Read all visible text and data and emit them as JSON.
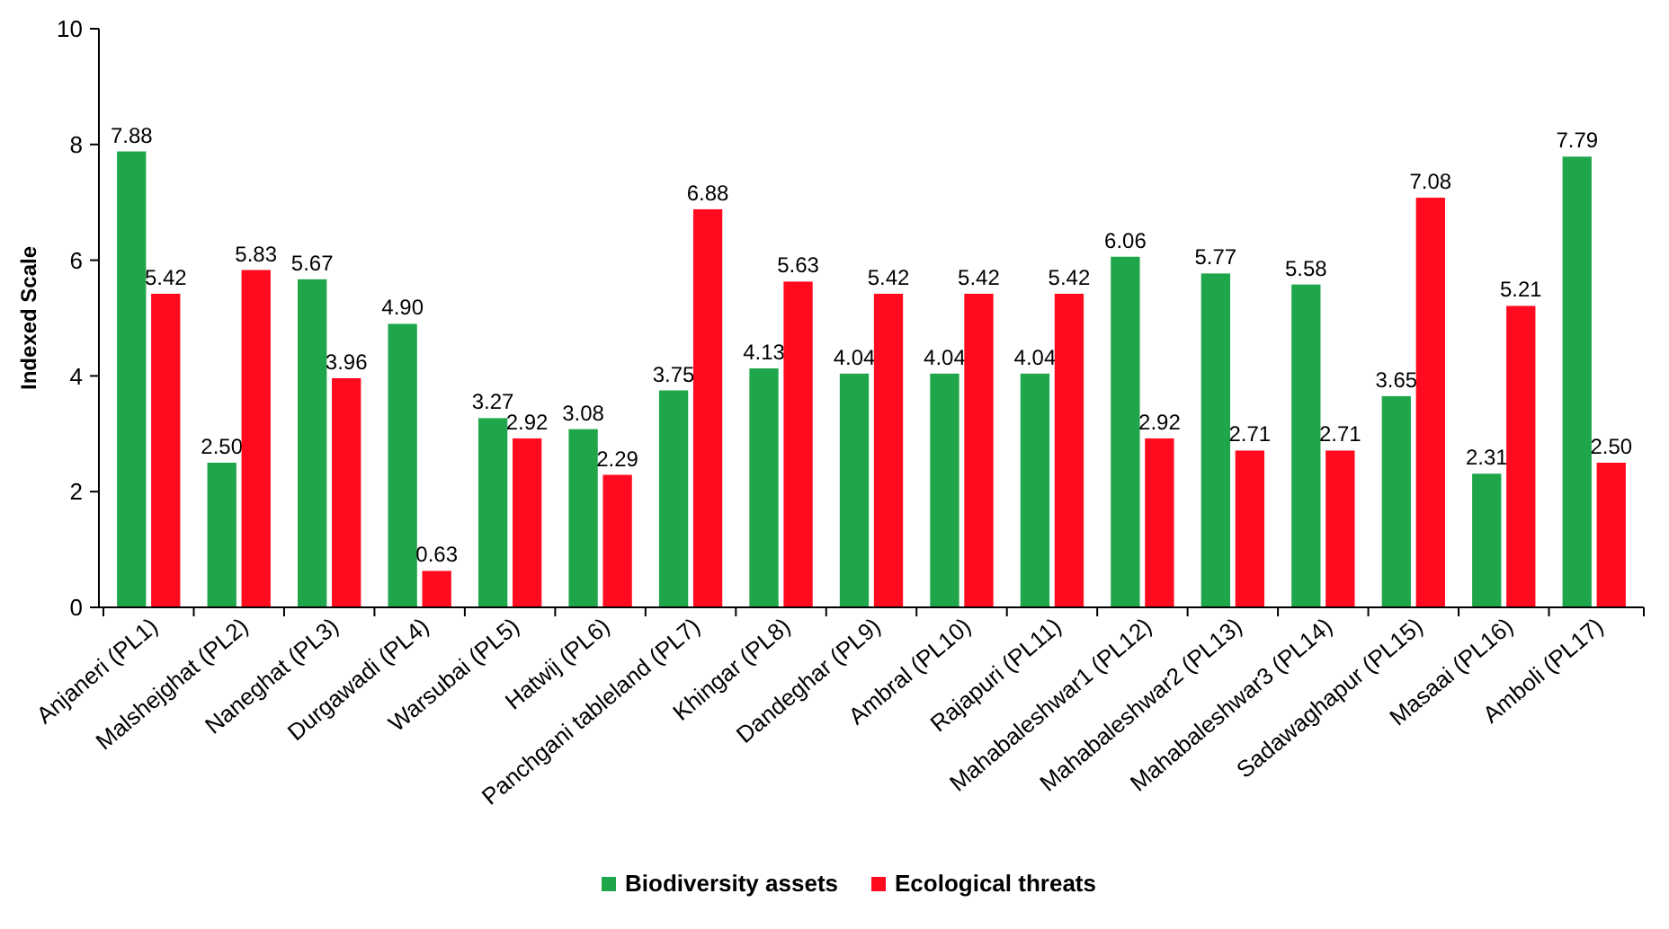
{
  "chart_data": {
    "type": "bar",
    "ylabel": "Indexed Scale",
    "categories": [
      "Anjaneri (PL1)",
      "Malshejghat (PL2)",
      "Naneghat (PL3)",
      "Durgawadi (PL4)",
      "Warsubai (PL5)",
      "Hatwij (PL6)",
      "Panchgani tableland (PL7)",
      "Khingar (PL8)",
      "Dandeghar (PL9)",
      "Ambral (PL10)",
      "Rajapuri (PL11)",
      "Mahabaleshwar1 (PL12)",
      "Mahabaleshwar2 (PL13)",
      "Mahabaleshwar3 (PL14)",
      "Sadawaghapur (PL15)",
      "Masaai (PL16)",
      "Amboli (PL17)"
    ],
    "series": [
      {
        "name": "Biodiversity assets",
        "color": "#1fa64a",
        "values": [
          7.88,
          2.5,
          5.67,
          4.9,
          3.27,
          3.08,
          3.75,
          4.13,
          4.04,
          4.04,
          4.04,
          6.06,
          5.77,
          5.58,
          3.65,
          2.31,
          7.79
        ],
        "value_labels": [
          "7.88",
          "2.50",
          "5.67",
          "4.90",
          "3.27",
          "3.08",
          "3.75",
          "4.13",
          "4.04",
          "4.04",
          "4.04",
          "6.06",
          "5.77",
          "5.58",
          "3.65",
          "2.31",
          "7.79"
        ]
      },
      {
        "name": "Ecological threats",
        "color": "#ff0a1e",
        "values": [
          5.42,
          5.83,
          3.96,
          0.63,
          2.92,
          2.29,
          6.88,
          5.63,
          5.42,
          5.42,
          5.42,
          2.92,
          2.71,
          2.71,
          7.08,
          5.21,
          2.5
        ],
        "value_labels": [
          "5.42",
          "5.83",
          "3.96",
          "0.63",
          "2.92",
          "2.29",
          "6.88",
          "5.63",
          "5.42",
          "5.42",
          "5.42",
          "2.92",
          "2.71",
          "2.71",
          "7.08",
          "5.21",
          "2.50"
        ]
      }
    ],
    "ylim": [
      0,
      10
    ],
    "yticks": [
      0,
      2,
      4,
      6,
      8,
      10
    ],
    "legend": "bottom"
  }
}
